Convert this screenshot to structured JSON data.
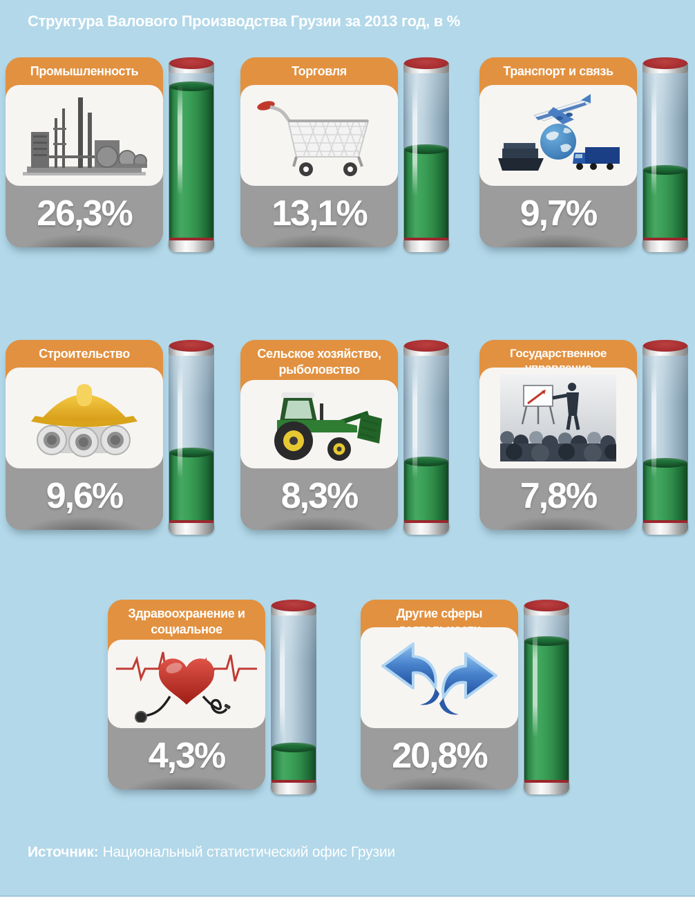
{
  "page": {
    "title": "Структура Валового Производства Грузии за 2013 год, в %",
    "source_label": "Источник:",
    "source_text": "Национальный статистический офис Грузии"
  },
  "colors": {
    "background": "#b2d8e9",
    "header_orange": "#e29140",
    "card_gray": "#9c9c9c",
    "panel_white": "#f7f5f2",
    "fill_green": "#2f8c49",
    "cap_red": "#aa2f32",
    "text_white": "#ffffff"
  },
  "chart_data": {
    "type": "bar",
    "title": "Структура Валового Производства Грузии за 2013 год, в %",
    "unit": "%",
    "categories": [
      "Промышленность",
      "Торговля",
      "Транспорт и связь",
      "Строительство",
      "Сельское хозяйство, рыболовство",
      "Государственное управление",
      "Здравоохранение и социальное обеспечение",
      "Другие сферы деятельности"
    ],
    "values": [
      26.3,
      13.1,
      9.7,
      9.6,
      8.3,
      7.8,
      4.3,
      20.8
    ],
    "source": "Национальный статистический офис Грузии",
    "legend_position": "none",
    "grid": false
  },
  "cards": [
    {
      "label": "Промышленность",
      "value_text": "26,3%",
      "value": 26.3,
      "fill_pct": 88,
      "icon": "factory-icon"
    },
    {
      "label": "Торговля",
      "value_text": "13,1%",
      "value": 13.1,
      "fill_pct": 52,
      "icon": "shopping-cart-icon"
    },
    {
      "label": "Транспорт и связь",
      "value_text": "9,7%",
      "value": 9.7,
      "fill_pct": 40,
      "icon": "transport-icon"
    },
    {
      "label": "Строительство",
      "value_text": "9,6%",
      "value": 9.6,
      "fill_pct": 40,
      "icon": "hard-hat-icon"
    },
    {
      "label": "Сельское хозяйство, рыболовство",
      "value_text": "8,3%",
      "value": 8.3,
      "fill_pct": 35,
      "icon": "tractor-icon"
    },
    {
      "label": "Государственное управление",
      "value_text": "7,8%",
      "value": 7.8,
      "fill_pct": 34,
      "icon": "presentation-icon"
    },
    {
      "label": "Здравоохранение и социальное обеспечение",
      "value_text": "4,3%",
      "value": 4.3,
      "fill_pct": 20,
      "icon": "health-icon"
    },
    {
      "label": "Другие сферы деятельности",
      "value_text": "20,8%",
      "value": 20.8,
      "fill_pct": 81,
      "icon": "swap-arrows-icon"
    }
  ]
}
